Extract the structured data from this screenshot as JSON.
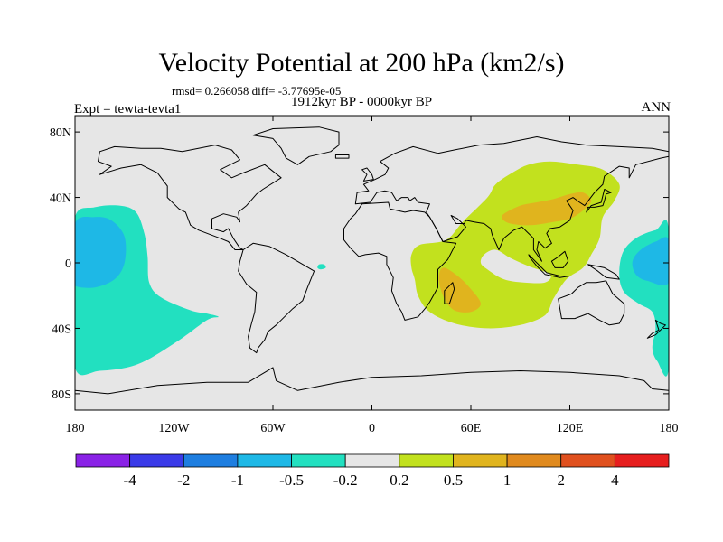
{
  "chart_data": {
    "type": "heatmap",
    "title": "Velocity Potential at 200 hPa (km2/s)",
    "stats_line": "rmsd= 0.266058 diff= -3.77695e-05",
    "period": "1912kyr BP - 0000kyr BP",
    "experiment": "Expt = tewta-tevta1",
    "season": "ANN",
    "x_range": [
      -180,
      180
    ],
    "y_range": [
      -90,
      90
    ],
    "x_ticks": [
      {
        "value": -180,
        "label": "180"
      },
      {
        "value": -120,
        "label": "120W"
      },
      {
        "value": -60,
        "label": "60W"
      },
      {
        "value": 0,
        "label": "0"
      },
      {
        "value": 60,
        "label": "60E"
      },
      {
        "value": 120,
        "label": "120E"
      },
      {
        "value": 180,
        "label": "180"
      }
    ],
    "y_ticks": [
      {
        "value": 80,
        "label": "80N"
      },
      {
        "value": 40,
        "label": "40N"
      },
      {
        "value": 0,
        "label": "0"
      },
      {
        "value": -40,
        "label": "40S"
      },
      {
        "value": -80,
        "label": "80S"
      }
    ],
    "colorbar": {
      "levels": [
        -4,
        -2,
        -1,
        -0.5,
        -0.2,
        0.2,
        0.5,
        1,
        2,
        4
      ],
      "labels": [
        "-4",
        "-2",
        "-1",
        "-0.5",
        "-0.2",
        "0.2",
        "0.5",
        "1",
        "2",
        "4"
      ],
      "colors": [
        "#8a22e6",
        "#3a3ae8",
        "#1e7ee0",
        "#1eb8e6",
        "#22e0c0",
        "#e6e6e6",
        "#c2e11e",
        "#e0b41e",
        "#e08a1e",
        "#e0501e",
        "#e61e1e"
      ]
    },
    "regions": [
      {
        "name": "central-pacific-negative",
        "class": "-0.5 to -0.2",
        "color": "#22e0c0",
        "lonlat": [
          [
            -180,
            -12
          ],
          [
            -180,
            28
          ],
          [
            -168,
            34
          ],
          [
            -153,
            35
          ],
          [
            -143,
            31
          ],
          [
            -138,
            18
          ],
          [
            -136,
            4
          ],
          [
            -135,
            -12
          ],
          [
            -128,
            -21
          ],
          [
            -110,
            -29
          ],
          [
            -100,
            -31
          ],
          [
            -93,
            -33
          ],
          [
            -100,
            -35
          ],
          [
            -118,
            -48
          ],
          [
            -142,
            -62
          ],
          [
            -165,
            -66
          ],
          [
            -180,
            -64
          ]
        ]
      },
      {
        "name": "central-pacific-core",
        "class": "-1 to -0.5",
        "color": "#1eb8e6",
        "lonlat": [
          [
            -180,
            -8
          ],
          [
            -180,
            24
          ],
          [
            -168,
            28
          ],
          [
            -158,
            26
          ],
          [
            -150,
            16
          ],
          [
            -150,
            0
          ],
          [
            -156,
            -10
          ],
          [
            -168,
            -15
          ],
          [
            -180,
            -14
          ]
        ]
      },
      {
        "name": "western-pacific-negative",
        "class": "-0.5 to -0.2",
        "color": "#22e0c0",
        "lonlat": [
          [
            180,
            20
          ],
          [
            172,
            20
          ],
          [
            160,
            15
          ],
          [
            152,
            6
          ],
          [
            150,
            -8
          ],
          [
            153,
            -18
          ],
          [
            162,
            -25
          ],
          [
            170,
            -30
          ],
          [
            172,
            -40
          ],
          [
            170,
            -52
          ],
          [
            173,
            -60
          ],
          [
            180,
            -64
          ]
        ]
      },
      {
        "name": "western-pacific-core",
        "class": "-1 to -0.5",
        "color": "#1eb8e6",
        "lonlat": [
          [
            180,
            14
          ],
          [
            172,
            13
          ],
          [
            163,
            8
          ],
          [
            158,
            1
          ],
          [
            160,
            -7
          ],
          [
            167,
            -11
          ],
          [
            180,
            -12
          ]
        ]
      },
      {
        "name": "south-atlantic-blob",
        "class": "-0.5 to -0.2",
        "color": "#22e0c0",
        "lonlat": [
          [
            -32,
            -1
          ],
          [
            -29,
            -1
          ],
          [
            -28,
            -3
          ],
          [
            -31,
            -4
          ],
          [
            -33,
            -3
          ]
        ]
      },
      {
        "name": "asia-indian-ocean-positive",
        "class": "0.2 to 0.5",
        "color": "#c2e11e",
        "lonlat": [
          [
            24,
            5
          ],
          [
            29,
            11
          ],
          [
            45,
            14
          ],
          [
            55,
            25
          ],
          [
            70,
            40
          ],
          [
            75,
            48
          ],
          [
            85,
            55
          ],
          [
            95,
            60
          ],
          [
            108,
            62
          ],
          [
            125,
            60
          ],
          [
            140,
            57
          ],
          [
            150,
            48
          ],
          [
            147,
            38
          ],
          [
            140,
            28
          ],
          [
            138,
            15
          ],
          [
            133,
            5
          ],
          [
            128,
            -3
          ],
          [
            118,
            -10
          ],
          [
            110,
            -22
          ],
          [
            105,
            -32
          ],
          [
            90,
            -38
          ],
          [
            70,
            -40
          ],
          [
            50,
            -37
          ],
          [
            35,
            -30
          ],
          [
            28,
            -20
          ],
          [
            26,
            -10
          ],
          [
            24,
            -3
          ]
        ]
      },
      {
        "name": "india-ocean-hole",
        "class": "-0.2 to 0.2",
        "color": "#e6e6e6",
        "lonlat": [
          [
            68,
            5
          ],
          [
            75,
            8
          ],
          [
            84,
            3
          ],
          [
            95,
            -2
          ],
          [
            108,
            -7
          ],
          [
            105,
            -12
          ],
          [
            92,
            -12
          ],
          [
            80,
            -10
          ],
          [
            70,
            -4
          ],
          [
            66,
            0
          ]
        ]
      },
      {
        "name": "east-asia-core",
        "class": "0.5 to 1",
        "color": "#e0b41e",
        "lonlat": [
          [
            80,
            30
          ],
          [
            90,
            35
          ],
          [
            100,
            37
          ],
          [
            110,
            39
          ],
          [
            120,
            42
          ],
          [
            128,
            43
          ],
          [
            133,
            38
          ],
          [
            128,
            32
          ],
          [
            120,
            27
          ],
          [
            110,
            25
          ],
          [
            96,
            23
          ],
          [
            84,
            24
          ],
          [
            79,
            27
          ]
        ]
      },
      {
        "name": "east-africa-core",
        "class": "0.5 to 1",
        "color": "#e0b41e",
        "lonlat": [
          [
            44,
            -3
          ],
          [
            52,
            -8
          ],
          [
            60,
            -16
          ],
          [
            66,
            -25
          ],
          [
            60,
            -30
          ],
          [
            50,
            -29
          ],
          [
            44,
            -22
          ],
          [
            41,
            -13
          ],
          [
            41,
            -6
          ]
        ]
      }
    ]
  }
}
